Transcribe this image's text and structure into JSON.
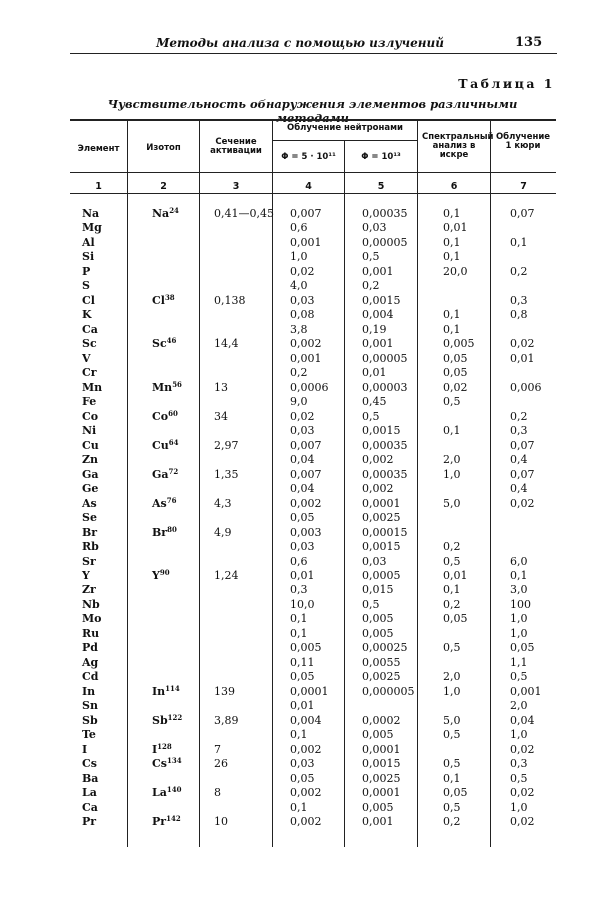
{
  "running_head": "Методы анализа с помощью излучений",
  "page_number": "135",
  "table_label": "Таблица 1",
  "caption": "Чувствительность обнаружения элементов различными методами",
  "header": {
    "element": "Элемент",
    "isotope": "Изотоп",
    "activation_section": "Сечение активации",
    "neutron_group": "Облучение нейтронами",
    "flux_1": "Φ = 5 · 10¹¹",
    "flux_2": "Φ = 10¹³",
    "spectral": "Спектральный анализ в искре",
    "curie": "Облучение 1 кюри",
    "col_numbers": [
      "1",
      "2",
      "3",
      "4",
      "5",
      "6",
      "7"
    ]
  },
  "rows": [
    [
      "Na",
      "Na|24",
      "0,41—0,45",
      "0,007",
      "0,00035",
      "0,1",
      "0,07"
    ],
    [
      "Mg",
      "",
      "",
      "0,6",
      "0,03",
      "0,01",
      ""
    ],
    [
      "Al",
      "",
      "",
      "0,001",
      "0,00005",
      "0,1",
      "0,1"
    ],
    [
      "Si",
      "",
      "",
      "1,0",
      "0,5",
      "0,1",
      ""
    ],
    [
      "P",
      "",
      "",
      "0,02",
      "0,001",
      "20,0",
      "0,2"
    ],
    [
      "S",
      "",
      "",
      "4,0",
      "0,2",
      "",
      ""
    ],
    [
      "Cl",
      "Cl|38",
      "0,138",
      "0,03",
      "0,0015",
      "",
      "0,3"
    ],
    [
      "K",
      "",
      "",
      "0,08",
      "0,004",
      "0,1",
      "0,8"
    ],
    [
      "Ca",
      "",
      "",
      "3,8",
      "0,19",
      "0,1",
      ""
    ],
    [
      "Sc",
      "Sc|46",
      "14,4",
      "0,002",
      "0,001",
      "0,005",
      "0,02"
    ],
    [
      "V",
      "",
      "",
      "0,001",
      "0,00005",
      "0,05",
      "0,01"
    ],
    [
      "Cr",
      "",
      "",
      "0,2",
      "0,01",
      "0,05",
      ""
    ],
    [
      "Mn",
      "Mn|56",
      "13",
      "0,0006",
      "0,00003",
      "0,02",
      "0,006"
    ],
    [
      "Fe",
      "",
      "",
      "9,0",
      "0,45",
      "0,5",
      ""
    ],
    [
      "Co",
      "Co|60",
      "34",
      "0,02",
      "0,5",
      "",
      "0,2"
    ],
    [
      "Ni",
      "",
      "",
      "0,03",
      "0,0015",
      "0,1",
      "0,3"
    ],
    [
      "Cu",
      "Cu|64",
      "2,97",
      "0,007",
      "0,00035",
      "",
      "0,07"
    ],
    [
      "Zn",
      "",
      "",
      "0,04",
      "0,002",
      "2,0",
      "0,4"
    ],
    [
      "Ga",
      "Ga|72",
      "1,35",
      "0,007",
      "0,00035",
      "1,0",
      "0,07"
    ],
    [
      "Ge",
      "",
      "",
      "0,04",
      "0,002",
      "",
      "0,4"
    ],
    [
      "As",
      "As|76",
      "4,3",
      "0,002",
      "0,0001",
      "5,0",
      "0,02"
    ],
    [
      "Se",
      "",
      "",
      "0,05",
      "0,0025",
      "",
      ""
    ],
    [
      "Br",
      "Br|80",
      "4,9",
      "0,003",
      "0,00015",
      "",
      ""
    ],
    [
      "Rb",
      "",
      "",
      "0,03",
      "0,0015",
      "0,2",
      ""
    ],
    [
      "Sr",
      "",
      "",
      "0,6",
      "0,03",
      "0,5",
      "6,0"
    ],
    [
      "Y",
      "Y|90",
      "1,24",
      "0,01",
      "0,0005",
      "0,01",
      "0,1"
    ],
    [
      "Zr",
      "",
      "",
      "0,3",
      "0,015",
      "0,1",
      "3,0"
    ],
    [
      "Nb",
      "",
      "",
      "10,0",
      "0,5",
      "0,2",
      "100"
    ],
    [
      "Mo",
      "",
      "",
      "0,1",
      "0,005",
      "0,05",
      "1,0"
    ],
    [
      "Ru",
      "",
      "",
      "0,1",
      "0,005",
      "",
      "1,0"
    ],
    [
      "Pd",
      "",
      "",
      "0,005",
      "0,00025",
      "0,5",
      "0,05"
    ],
    [
      "Ag",
      "",
      "",
      "0,11",
      "0,0055",
      "",
      "1,1"
    ],
    [
      "Cd",
      "",
      "",
      "0,05",
      "0,0025",
      "2,0",
      "0,5"
    ],
    [
      "In",
      "In|114",
      "139",
      "0,0001",
      "0,000005",
      "1,0",
      "0,001"
    ],
    [
      "Sn",
      "",
      "",
      "0,01",
      "",
      "",
      "2,0"
    ],
    [
      "Sb",
      "Sb|122",
      "3,89",
      "0,004",
      "0,0002",
      "5,0",
      "0,04"
    ],
    [
      "Te",
      "",
      "",
      "0,1",
      "0,005",
      "0,5",
      "1,0"
    ],
    [
      "I",
      "I|128",
      "7",
      "0,002",
      "0,0001",
      "",
      "0,02"
    ],
    [
      "Cs",
      "Cs|134",
      "26",
      "0,03",
      "0,0015",
      "0,5",
      "0,3"
    ],
    [
      "Ba",
      "",
      "",
      "0,05",
      "0,0025",
      "0,1",
      "0,5"
    ],
    [
      "La",
      "La|140",
      "8",
      "0,002",
      "0,0001",
      "0,05",
      "0,02"
    ],
    [
      "Ca",
      "",
      "",
      "0,1",
      "0,005",
      "0,5",
      "1,0"
    ],
    [
      "Pr",
      "Pr|142",
      "10",
      "0,002",
      "0,001",
      "0,2",
      "0,02"
    ]
  ]
}
